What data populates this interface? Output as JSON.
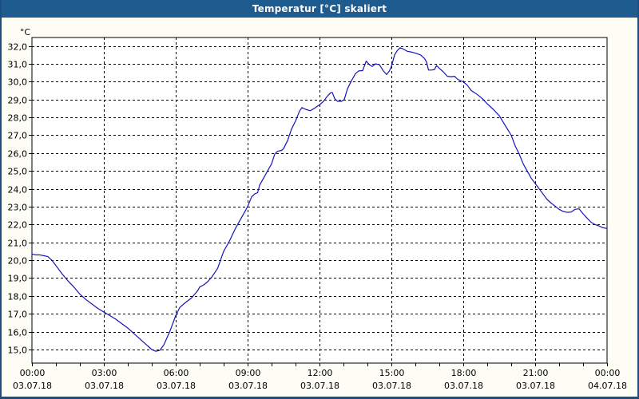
{
  "window": {
    "title": "Temperatur [°C] skaliert"
  },
  "chart_data": {
    "type": "line",
    "title": "Temperatur [°C] skaliert",
    "y_unit_label": "°C",
    "ylim": [
      15,
      32
    ],
    "xlim_hours": [
      0,
      24
    ],
    "grid": "dashed",
    "legend": "none",
    "line_color": "#1313bd",
    "y_ticks": [
      {
        "value": 32,
        "label": "32,0"
      },
      {
        "value": 31,
        "label": "31,0"
      },
      {
        "value": 30,
        "label": "30,0"
      },
      {
        "value": 29,
        "label": "29,0"
      },
      {
        "value": 28,
        "label": "28,0"
      },
      {
        "value": 27,
        "label": "27,0"
      },
      {
        "value": 26,
        "label": "26,0"
      },
      {
        "value": 25,
        "label": "25,0"
      },
      {
        "value": 24,
        "label": "24,0"
      },
      {
        "value": 23,
        "label": "23,0"
      },
      {
        "value": 22,
        "label": "22,0"
      },
      {
        "value": 21,
        "label": "21,0"
      },
      {
        "value": 20,
        "label": "20,0"
      },
      {
        "value": 19,
        "label": "19,0"
      },
      {
        "value": 18,
        "label": "18,0"
      },
      {
        "value": 17,
        "label": "17,0"
      },
      {
        "value": 16,
        "label": "16,0"
      },
      {
        "value": 15,
        "label": "15,0"
      }
    ],
    "x_ticks": [
      {
        "hour": 0,
        "time": "00:00",
        "date": "03.07.18"
      },
      {
        "hour": 3,
        "time": "03:00",
        "date": "03.07.18"
      },
      {
        "hour": 6,
        "time": "06:00",
        "date": "03.07.18"
      },
      {
        "hour": 9,
        "time": "09:00",
        "date": "03.07.18"
      },
      {
        "hour": 12,
        "time": "12:00",
        "date": "03.07.18"
      },
      {
        "hour": 15,
        "time": "15:00",
        "date": "03.07.18"
      },
      {
        "hour": 18,
        "time": "18:00",
        "date": "03.07.18"
      },
      {
        "hour": 21,
        "time": "21:00",
        "date": "03.07.18"
      },
      {
        "hour": 24,
        "time": "00:00",
        "date": "04.07.18"
      }
    ],
    "x_minor_tick_every_hours": 1,
    "series": [
      {
        "name": "Temperatur",
        "x_unit": "minutes_since_midnight",
        "points": [
          [
            0,
            20.35
          ],
          [
            10,
            20.3
          ],
          [
            20,
            20.3
          ],
          [
            30,
            20.25
          ],
          [
            40,
            20.2
          ],
          [
            45,
            20.1
          ],
          [
            50,
            20.0
          ],
          [
            60,
            19.7
          ],
          [
            75,
            19.25
          ],
          [
            90,
            18.85
          ],
          [
            105,
            18.5
          ],
          [
            120,
            18.1
          ],
          [
            135,
            17.8
          ],
          [
            150,
            17.55
          ],
          [
            165,
            17.3
          ],
          [
            180,
            17.1
          ],
          [
            195,
            16.9
          ],
          [
            210,
            16.7
          ],
          [
            225,
            16.45
          ],
          [
            240,
            16.2
          ],
          [
            255,
            15.9
          ],
          [
            270,
            15.6
          ],
          [
            285,
            15.3
          ],
          [
            300,
            15.0
          ],
          [
            310,
            14.9
          ],
          [
            320,
            14.95
          ],
          [
            330,
            15.25
          ],
          [
            345,
            16.0
          ],
          [
            360,
            16.9
          ],
          [
            370,
            17.35
          ],
          [
            380,
            17.55
          ],
          [
            400,
            17.9
          ],
          [
            415,
            18.3
          ],
          [
            420,
            18.5
          ],
          [
            430,
            18.62
          ],
          [
            440,
            18.8
          ],
          [
            450,
            19.05
          ],
          [
            465,
            19.55
          ],
          [
            480,
            20.5
          ],
          [
            495,
            21.1
          ],
          [
            510,
            21.8
          ],
          [
            525,
            22.4
          ],
          [
            540,
            23.0
          ],
          [
            550,
            23.55
          ],
          [
            558,
            23.72
          ],
          [
            565,
            23.78
          ],
          [
            570,
            24.2
          ],
          [
            580,
            24.6
          ],
          [
            590,
            25.0
          ],
          [
            600,
            25.4
          ],
          [
            608,
            25.95
          ],
          [
            615,
            26.1
          ],
          [
            625,
            26.15
          ],
          [
            630,
            26.25
          ],
          [
            640,
            26.7
          ],
          [
            650,
            27.35
          ],
          [
            660,
            27.8
          ],
          [
            670,
            28.35
          ],
          [
            676,
            28.55
          ],
          [
            685,
            28.45
          ],
          [
            697,
            28.37
          ],
          [
            710,
            28.55
          ],
          [
            720,
            28.7
          ],
          [
            730,
            28.9
          ],
          [
            740,
            29.2
          ],
          [
            748,
            29.38
          ],
          [
            752,
            29.4
          ],
          [
            758,
            29.05
          ],
          [
            765,
            28.9
          ],
          [
            775,
            28.9
          ],
          [
            782,
            29.0
          ],
          [
            790,
            29.6
          ],
          [
            800,
            30.05
          ],
          [
            810,
            30.45
          ],
          [
            818,
            30.6
          ],
          [
            828,
            30.62
          ],
          [
            837,
            31.15
          ],
          [
            845,
            30.95
          ],
          [
            852,
            30.85
          ],
          [
            860,
            31.0
          ],
          [
            870,
            30.95
          ],
          [
            880,
            30.6
          ],
          [
            888,
            30.4
          ],
          [
            895,
            30.6
          ],
          [
            900,
            30.85
          ],
          [
            908,
            31.5
          ],
          [
            915,
            31.75
          ],
          [
            922,
            31.9
          ],
          [
            928,
            31.85
          ],
          [
            940,
            31.7
          ],
          [
            952,
            31.65
          ],
          [
            960,
            31.6
          ],
          [
            973,
            31.5
          ],
          [
            983,
            31.3
          ],
          [
            988,
            31.1
          ],
          [
            993,
            30.65
          ],
          [
            1000,
            30.65
          ],
          [
            1008,
            30.68
          ],
          [
            1013,
            30.9
          ],
          [
            1020,
            30.75
          ],
          [
            1030,
            30.55
          ],
          [
            1040,
            30.3
          ],
          [
            1050,
            30.28
          ],
          [
            1058,
            30.3
          ],
          [
            1065,
            30.15
          ],
          [
            1073,
            30.05
          ],
          [
            1080,
            30.0
          ],
          [
            1090,
            29.8
          ],
          [
            1100,
            29.5
          ],
          [
            1110,
            29.36
          ],
          [
            1120,
            29.2
          ],
          [
            1130,
            29.0
          ],
          [
            1140,
            28.76
          ],
          [
            1155,
            28.45
          ],
          [
            1170,
            28.1
          ],
          [
            1185,
            27.55
          ],
          [
            1200,
            27.0
          ],
          [
            1210,
            26.4
          ],
          [
            1220,
            25.95
          ],
          [
            1230,
            25.4
          ],
          [
            1240,
            25.0
          ],
          [
            1250,
            24.6
          ],
          [
            1260,
            24.3
          ],
          [
            1270,
            24.0
          ],
          [
            1280,
            23.7
          ],
          [
            1290,
            23.4
          ],
          [
            1300,
            23.2
          ],
          [
            1310,
            23.03
          ],
          [
            1320,
            22.85
          ],
          [
            1330,
            22.73
          ],
          [
            1340,
            22.68
          ],
          [
            1350,
            22.7
          ],
          [
            1360,
            22.85
          ],
          [
            1370,
            22.88
          ],
          [
            1380,
            22.6
          ],
          [
            1390,
            22.36
          ],
          [
            1400,
            22.13
          ],
          [
            1410,
            22.0
          ],
          [
            1420,
            21.92
          ],
          [
            1430,
            21.82
          ],
          [
            1440,
            21.78
          ]
        ]
      }
    ]
  }
}
